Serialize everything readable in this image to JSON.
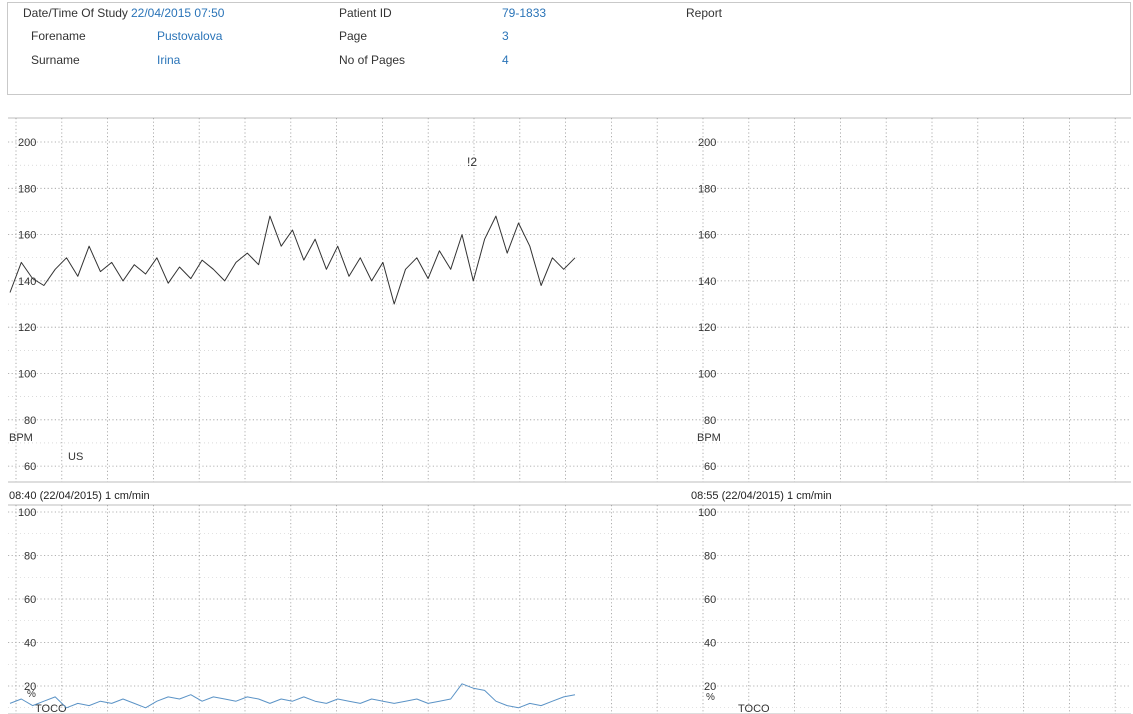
{
  "header": {
    "date_label": "Date/Time Of Study",
    "date_value": "22/04/2015 07:50",
    "forename_label": "Forename",
    "forename_value": "Pustovalova",
    "surname_label": "Surname",
    "surname_value": "Irina",
    "patient_id_label": "Patient ID",
    "patient_id_value": "79-1833",
    "page_label": "Page",
    "page_value": "3",
    "pages_label": "No of Pages",
    "pages_value": "4",
    "report_label": "Report"
  },
  "colors": {
    "fhr_trace": "#333333",
    "toco_trace": "#5b93c6",
    "header_value": "#2a74b8",
    "grid": "#9a9a9a"
  },
  "chart_data": [
    {
      "type": "line",
      "name": "fhr-panel",
      "ylabel": "BPM",
      "y_ticks": [
        "200",
        "180",
        "160",
        "140",
        "120",
        "100",
        "80",
        "60"
      ],
      "ylim": [
        55,
        210
      ],
      "grid": true,
      "annotations": [
        "!2",
        "US"
      ],
      "series": [
        {
          "x": [
            0,
            0.25,
            0.5,
            0.75,
            1,
            1.25,
            1.5,
            1.75,
            2,
            2.25,
            2.5,
            2.75,
            3,
            3.25,
            3.5,
            3.75,
            4,
            4.25,
            4.5,
            4.75,
            5,
            5.25,
            5.5,
            5.75,
            6,
            6.25,
            6.5,
            6.75,
            7,
            7.25,
            7.5,
            7.75,
            8,
            8.25,
            8.5,
            8.75,
            9,
            9.25,
            9.5,
            9.75,
            10,
            10.25,
            10.5,
            10.75,
            11,
            11.25,
            11.5,
            11.75,
            12,
            12.25,
            12.5
          ],
          "values": [
            135,
            148,
            141,
            138,
            145,
            150,
            142,
            155,
            144,
            148,
            140,
            147,
            143,
            150,
            139,
            146,
            141,
            149,
            145,
            140,
            148,
            152,
            147,
            168,
            155,
            162,
            149,
            158,
            145,
            155,
            142,
            150,
            140,
            148,
            130,
            145,
            150,
            141,
            153,
            145,
            160,
            140,
            158,
            168,
            152,
            165,
            155,
            138,
            150,
            145,
            150
          ]
        }
      ]
    },
    {
      "type": "line",
      "name": "toco-panel",
      "ylabel": "%",
      "y_ticks": [
        "100",
        "80",
        "60",
        "40",
        "20"
      ],
      "ylim": [
        5,
        100
      ],
      "grid": true,
      "annotations": [
        "TOCO"
      ],
      "series": [
        {
          "x": [
            0,
            0.25,
            0.5,
            0.75,
            1,
            1.25,
            1.5,
            1.75,
            2,
            2.25,
            2.5,
            2.75,
            3,
            3.25,
            3.5,
            3.75,
            4,
            4.25,
            4.5,
            4.75,
            5,
            5.25,
            5.5,
            5.75,
            6,
            6.25,
            6.5,
            6.75,
            7,
            7.25,
            7.5,
            7.75,
            8,
            8.25,
            8.5,
            8.75,
            9,
            9.25,
            9.5,
            9.75,
            10,
            10.25,
            10.5,
            10.75,
            11,
            11.25,
            11.5,
            11.75,
            12,
            12.25,
            12.5
          ],
          "values": [
            12,
            14,
            11,
            13,
            15,
            10,
            12,
            11,
            13,
            12,
            14,
            12,
            10,
            13,
            15,
            14,
            16,
            13,
            15,
            14,
            13,
            15,
            14,
            12,
            14,
            13,
            15,
            13,
            12,
            14,
            13,
            12,
            14,
            13,
            12,
            13,
            14,
            12,
            13,
            14,
            21,
            19,
            18,
            13,
            11,
            10,
            12,
            11,
            13,
            15,
            16
          ]
        }
      ]
    }
  ],
  "segments": [
    {
      "time_label": "08:40 (22/04/2015) 1 cm/min"
    },
    {
      "time_label": "08:55 (22/04/2015) 1 cm/min"
    }
  ]
}
